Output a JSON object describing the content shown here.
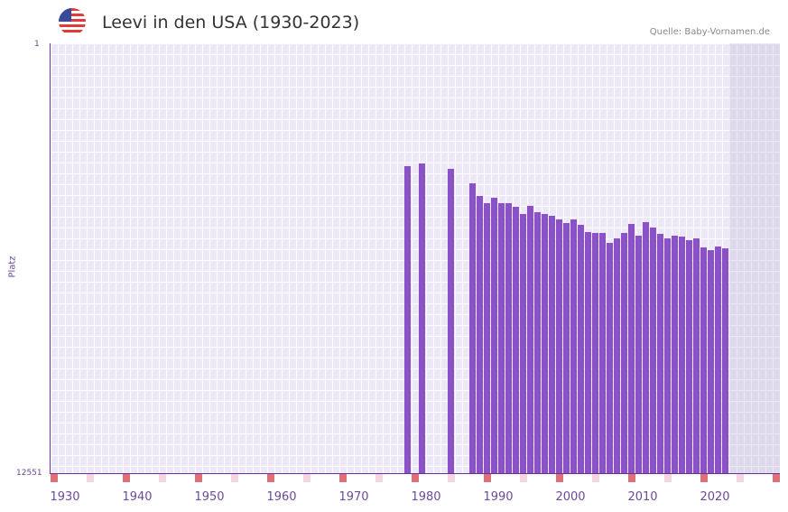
{
  "header": {
    "title": "Leevi in den USA (1930-2023)",
    "source": "Quelle: Baby-Vornamen.de",
    "flag_icon": "us-flag-icon"
  },
  "chart_data": {
    "type": "bar",
    "title": "Leevi in den USA (1930-2023)",
    "xlabel": "",
    "ylabel": "Platz",
    "y_inverted": true,
    "ylim": [
      1,
      12551
    ],
    "xticks": [
      "1930",
      "1940",
      "1950",
      "1960",
      "1970",
      "1980",
      "1990",
      "2000",
      "2010",
      "2020"
    ],
    "bar_color": "#8a52c6",
    "x": [
      1979,
      1981,
      1985,
      1988,
      1989,
      1990,
      1991,
      1992,
      1993,
      1994,
      1995,
      1996,
      1997,
      1998,
      1999,
      2000,
      2001,
      2002,
      2003,
      2004,
      2005,
      2006,
      2007,
      2008,
      2009,
      2010,
      2011,
      2012,
      2013,
      2014,
      2015,
      2016,
      2017,
      2018,
      2019,
      2020,
      2021,
      2022,
      2023
    ],
    "values": [
      3580,
      3500,
      3660,
      4100,
      4450,
      4680,
      4500,
      4680,
      4660,
      4760,
      4980,
      4740,
      4920,
      4980,
      5050,
      5130,
      5260,
      5130,
      5290,
      5510,
      5530,
      5550,
      5840,
      5700,
      5530,
      5270,
      5630,
      5210,
      5380,
      5560,
      5700,
      5620,
      5640,
      5740,
      5700,
      5950,
      6030,
      5930,
      5990
    ]
  }
}
